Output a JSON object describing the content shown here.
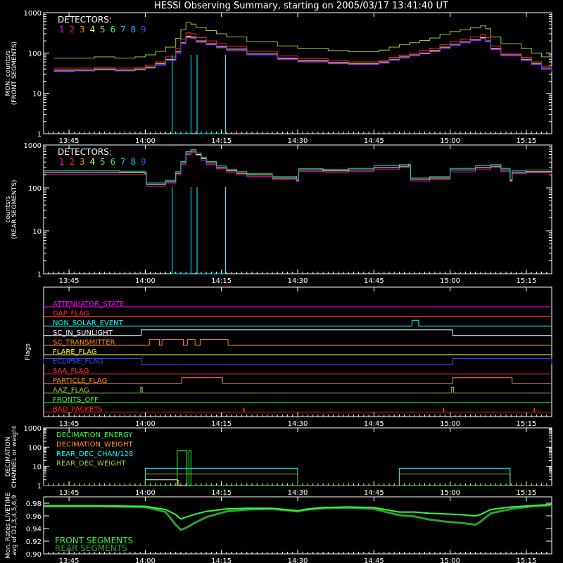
{
  "title": "HESSI Observing Summary, starting on 2005/03/17 13:41:40 UT",
  "colors": {
    "det": [
      "#ff00ff",
      "#ff2020",
      "#ff8c1a",
      "#ffff33",
      "#9acd32",
      "#33ff33",
      "#00ced1",
      "#00bfff",
      "#3355ff"
    ],
    "cyan": "#00ffff",
    "axis": "#ffffff"
  },
  "time_axis": {
    "tmin_minutes_after_1340": 0,
    "tmax_minutes_after_1340": 100,
    "tick_labels": [
      "13:45",
      "14:00",
      "14:15",
      "14:30",
      "14:45",
      "15:00",
      "15:15"
    ],
    "tick_minutes_after_1340": [
      5,
      20,
      35,
      50,
      65,
      80,
      95
    ]
  },
  "chart_data": [
    {
      "id": "front",
      "type": "line",
      "title": "",
      "ylabel": [
        "MON. counts/s",
        "(FRONT SEGMENTS)"
      ],
      "yscale": "log",
      "ylim": [
        1,
        1000
      ],
      "ytick_labels": [
        "1",
        "10",
        "100",
        "1000"
      ],
      "legend_title": "DETECTORS:",
      "legend_numbers": [
        "1",
        "2",
        "3",
        "4",
        "5",
        "6",
        "7",
        "8",
        "9"
      ],
      "x_minutes_after_1340": [
        2,
        6,
        10,
        14,
        18,
        20,
        22,
        24,
        26,
        27,
        28,
        29,
        30,
        32,
        34,
        36,
        40,
        46,
        50,
        56,
        60,
        64,
        66,
        68,
        70,
        72,
        74,
        76,
        78,
        80,
        82,
        84,
        86,
        87,
        88,
        90,
        94,
        96,
        98,
        100
      ],
      "series": [
        {
          "values": [
            38,
            38,
            40,
            38,
            40,
            45,
            55,
            70,
            110,
            180,
            260,
            250,
            200,
            170,
            145,
            125,
            95,
            75,
            65,
            58,
            55,
            55,
            60,
            70,
            80,
            90,
            100,
            115,
            140,
            165,
            190,
            215,
            240,
            200,
            130,
            90,
            70,
            55,
            42,
            38
          ]
        },
        {
          "values": [
            35,
            36,
            38,
            36,
            38,
            42,
            50,
            65,
            100,
            170,
            240,
            230,
            185,
            160,
            135,
            115,
            90,
            70,
            60,
            54,
            52,
            52,
            56,
            66,
            75,
            85,
            95,
            108,
            130,
            155,
            180,
            205,
            225,
            190,
            120,
            85,
            65,
            52,
            40,
            35
          ]
        },
        {
          "values": [
            42,
            42,
            44,
            42,
            44,
            50,
            60,
            80,
            130,
            220,
            320,
            300,
            240,
            200,
            170,
            145,
            110,
            85,
            72,
            64,
            60,
            60,
            66,
            78,
            88,
            100,
            115,
            130,
            160,
            190,
            220,
            250,
            280,
            240,
            150,
            100,
            78,
            60,
            47,
            42
          ]
        },
        {
          "values": [
            75,
            75,
            80,
            75,
            80,
            90,
            110,
            140,
            230,
            380,
            560,
            520,
            430,
            360,
            300,
            250,
            190,
            150,
            130,
            115,
            108,
            108,
            118,
            140,
            160,
            180,
            205,
            235,
            290,
            340,
            380,
            420,
            470,
            400,
            250,
            170,
            130,
            100,
            80,
            75
          ]
        },
        {
          "values": [
            36,
            36,
            38,
            36,
            38,
            43,
            52,
            67,
            105,
            175,
            250,
            240,
            190,
            165,
            140,
            120,
            92,
            72,
            62,
            56,
            53,
            53,
            58,
            68,
            78,
            88,
            97,
            110,
            135,
            160,
            185,
            210,
            230,
            195,
            125,
            88,
            67,
            53,
            41,
            36
          ]
        }
      ],
      "dropout_series_color": "cyan",
      "dropout_note_minutes": [
        [
          25.3,
          29.0
        ],
        [
          30.2,
          35.8
        ]
      ]
    },
    {
      "id": "rear",
      "type": "line",
      "title": "",
      "ylabel": [
        "counts/s",
        "(REAR SEGMENTS)"
      ],
      "yscale": "log",
      "ylim": [
        1,
        1000
      ],
      "ytick_labels": [
        "1",
        "10",
        "100",
        "1000"
      ],
      "legend_title": "DETECTORS:",
      "legend_numbers": [
        "1",
        "2",
        "3",
        "4",
        "5",
        "6",
        "7",
        "8",
        "9"
      ],
      "x_minutes_after_1340": [
        0,
        5,
        10,
        15,
        19.8,
        20.2,
        24,
        26,
        27,
        28,
        29,
        30,
        31,
        32,
        34,
        36,
        38,
        40,
        45,
        49.8,
        50.2,
        55,
        60,
        65,
        70,
        71.8,
        72.2,
        76,
        80,
        85,
        88,
        90,
        91.8,
        92.2,
        95,
        100
      ],
      "series": [
        {
          "values": [
            230,
            230,
            230,
            225,
            220,
            120,
            140,
            220,
            380,
            650,
            720,
            600,
            480,
            380,
            300,
            250,
            220,
            200,
            170,
            150,
            260,
            250,
            260,
            300,
            320,
            330,
            160,
            170,
            260,
            300,
            320,
            260,
            150,
            230,
            240,
            230
          ]
        },
        {
          "values": [
            210,
            210,
            210,
            205,
            200,
            110,
            130,
            200,
            350,
            600,
            680,
            560,
            440,
            350,
            280,
            230,
            200,
            185,
            155,
            140,
            240,
            230,
            240,
            275,
            295,
            300,
            145,
            155,
            235,
            275,
            295,
            240,
            140,
            215,
            225,
            210
          ]
        },
        {
          "values": [
            250,
            250,
            250,
            245,
            240,
            130,
            150,
            240,
            410,
            700,
            780,
            650,
            520,
            410,
            325,
            270,
            240,
            215,
            185,
            160,
            280,
            270,
            285,
            330,
            350,
            360,
            170,
            185,
            285,
            330,
            350,
            285,
            160,
            250,
            260,
            250
          ]
        }
      ],
      "dropout_series_color": "cyan",
      "dropout_note_minutes": [
        [
          25.3,
          29.0
        ],
        [
          30.2,
          35.8
        ]
      ]
    },
    {
      "id": "flags",
      "type": "table",
      "ylabel": "Flags",
      "rows": [
        {
          "label": "ATTENUATOR_STATE",
          "color": "#ff00ff",
          "segments": []
        },
        {
          "label": "GAP_FLAG",
          "color": "#ff3030",
          "segments": []
        },
        {
          "label": "NON_SOLAR_EVENT",
          "color": "#00ffff",
          "segments": [
            [
              72.5,
              73.8
            ]
          ]
        },
        {
          "label": "SC_IN_SUNLIGHT",
          "color": "#ffffff",
          "segments": [
            [
              19.2,
              80.5
            ]
          ]
        },
        {
          "label": "SC_TRANSMITTER",
          "color": "#ff8c1a",
          "segments": [
            [
              20.8,
              22.8
            ],
            [
              23.3,
              27.5
            ],
            [
              28.3,
              29.8
            ],
            [
              30.8,
              36.3
            ]
          ]
        },
        {
          "label": "FLARE_FLAG",
          "color": "#ffff33",
          "segments": []
        },
        {
          "label": "ECLIPSE_FLAG",
          "color": "#3355ff",
          "segments": [
            [
              0,
              19.2
            ],
            [
              80.5,
              100
            ]
          ]
        },
        {
          "label": "SAA_FLAG",
          "color": "#ff3030",
          "segments": []
        },
        {
          "label": "PARTICLE_FLAG",
          "color": "#ff8c1a",
          "segments": [
            [
              27.2,
              35.2
            ],
            [
              80.5,
              92.2
            ]
          ]
        },
        {
          "label": "AAZ_FLAG",
          "color": "#9acd32",
          "segments": [
            [
              19.1,
              19.4
            ],
            [
              80.3,
              80.7
            ]
          ]
        },
        {
          "label": "FRONTS_OFF",
          "color": "#33ff33",
          "segments": []
        },
        {
          "label": "BAD_PACKETS",
          "color": "#ff2020",
          "spikes": [
            39.4,
            78.7,
            96.6
          ]
        }
      ]
    },
    {
      "id": "decimation",
      "type": "line",
      "ylabel": [
        "DECIMATION",
        "CHANNEL or weight"
      ],
      "yscale": "log",
      "ylim": [
        1,
        1000
      ],
      "ytick_labels": [
        "1",
        "10",
        "100",
        "1000"
      ],
      "legend": [
        {
          "label": "DECIMATION_ENERGY",
          "color": "#33ff33"
        },
        {
          "label": "DECIMATION_WEIGHT",
          "color": "#ff8c1a"
        },
        {
          "label": "REAR_DEC_CHAN/128",
          "color": "#00ffff"
        },
        {
          "label": "REAR_DEC_WEIGHT",
          "color": "#9acd32"
        }
      ],
      "steps": [
        {
          "color": "#ff8c1a",
          "points": [
            [
              0,
              1
            ],
            [
              26.4,
              1
            ],
            [
              26.4,
              1.9
            ],
            [
              26.6,
              1.9
            ],
            [
              26.6,
              1
            ],
            [
              100,
              1
            ]
          ]
        },
        {
          "color": "#ffffff",
          "points": [
            [
              0,
              1
            ],
            [
              20,
              1
            ],
            [
              20,
              2
            ],
            [
              26.3,
              2
            ],
            [
              26.3,
              1
            ],
            [
              100,
              1
            ]
          ]
        },
        {
          "color": "#33ff33",
          "points": [
            [
              0,
              1
            ],
            [
              26.3,
              1
            ],
            [
              26.3,
              64
            ],
            [
              28.2,
              64
            ],
            [
              28.2,
              1
            ],
            [
              28.6,
              1
            ],
            [
              28.6,
              64
            ],
            [
              29.0,
              64
            ],
            [
              29.0,
              1
            ],
            [
              100,
              1
            ]
          ]
        },
        {
          "color": "#00ffff",
          "points": [
            [
              0,
              1
            ],
            [
              20,
              1
            ],
            [
              20,
              8
            ],
            [
              50,
              8
            ],
            [
              50,
              1
            ],
            [
              70,
              1
            ],
            [
              70,
              8
            ],
            [
              91.8,
              8
            ],
            [
              91.8,
              1
            ],
            [
              100,
              1
            ]
          ]
        },
        {
          "color": "#9acd32",
          "points": [
            [
              0,
              1
            ],
            [
              20,
              1
            ],
            [
              20,
              4
            ],
            [
              50,
              4
            ],
            [
              50,
              1
            ],
            [
              70,
              1
            ],
            [
              70,
              4
            ],
            [
              91.8,
              4
            ],
            [
              91.8,
              1
            ],
            [
              100,
              1
            ]
          ]
        }
      ]
    },
    {
      "id": "livetime",
      "type": "line",
      "ylabel": [
        "Mon. Rates LIVETIME",
        "avg of D1,3,4,5,6,9"
      ],
      "ylim": [
        0.9,
        0.99
      ],
      "ytick_labels": [
        "0.90",
        "0.92",
        "0.94",
        "0.96",
        "0.98"
      ],
      "ytick_values": [
        0.9,
        0.92,
        0.94,
        0.96,
        0.98
      ],
      "legend": [
        {
          "label": "FRONT SEGMENTS",
          "color": "#33ff33"
        },
        {
          "label": "REAR SEGMENTS",
          "color": "#2f9e2f"
        }
      ],
      "x_minutes_after_1340": [
        0,
        10,
        20,
        24,
        26,
        27,
        28,
        30,
        32,
        36,
        40,
        45,
        50,
        52,
        55,
        60,
        65,
        70,
        73,
        76,
        79,
        82,
        85,
        86,
        88,
        92,
        96,
        100
      ],
      "series": [
        {
          "name": "FRONT SEGMENTS",
          "values": [
            0.976,
            0.976,
            0.975,
            0.97,
            0.962,
            0.955,
            0.958,
            0.963,
            0.967,
            0.971,
            0.972,
            0.972,
            0.968,
            0.971,
            0.973,
            0.974,
            0.973,
            0.966,
            0.966,
            0.964,
            0.963,
            0.962,
            0.96,
            0.962,
            0.97,
            0.974,
            0.976,
            0.978
          ]
        },
        {
          "name": "REAR SEGMENTS",
          "values": [
            0.975,
            0.975,
            0.974,
            0.966,
            0.946,
            0.938,
            0.941,
            0.95,
            0.958,
            0.967,
            0.97,
            0.971,
            0.967,
            0.97,
            0.972,
            0.973,
            0.971,
            0.961,
            0.959,
            0.954,
            0.951,
            0.949,
            0.946,
            0.951,
            0.964,
            0.971,
            0.975,
            0.977
          ]
        }
      ]
    }
  ]
}
